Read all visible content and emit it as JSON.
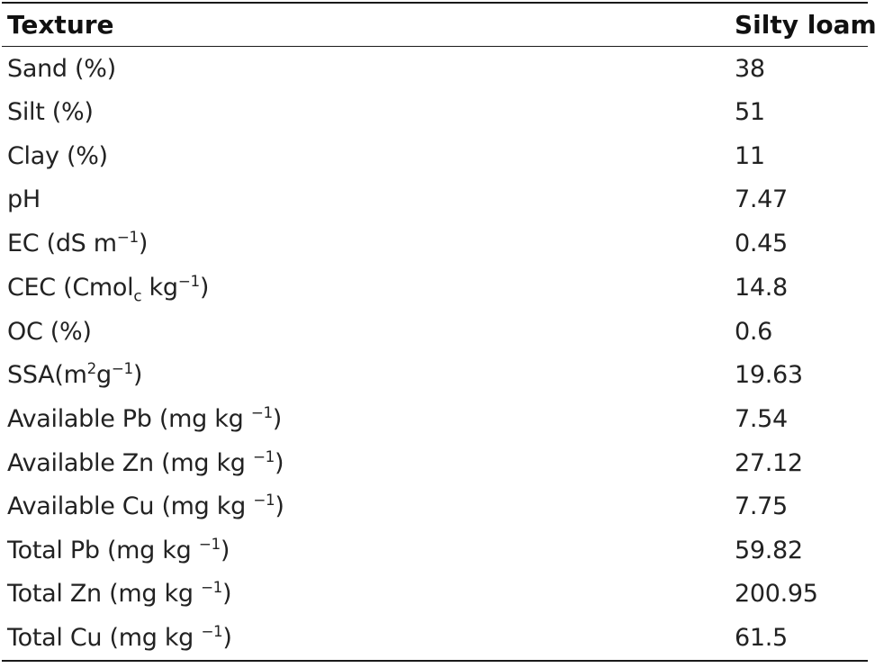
{
  "table": {
    "header": {
      "label": "Texture",
      "value": "Silty loam"
    },
    "rows": [
      {
        "label": "Sand (%)",
        "value": "38"
      },
      {
        "label": "Silt (%)",
        "value": "51"
      },
      {
        "label": "Clay (%)",
        "value": "11"
      },
      {
        "label": "pH",
        "value": "7.47"
      },
      {
        "label_main": "EC (dS m",
        "label_sup": "−1",
        "label_end": ")",
        "value": "0.45"
      },
      {
        "label_main": "CEC (Cmol",
        "label_sub": "c",
        "label_mid": " kg",
        "label_sup": "−1",
        "label_end": ")",
        "value": "14.8"
      },
      {
        "label": "OC (%)",
        "value": "0.6"
      },
      {
        "label_main": "SSA(m",
        "label_sup": "2",
        "label_mid": "g",
        "label_sup2": "−1",
        "label_end": ")",
        "value": "19.63"
      },
      {
        "label_main": "Available Pb (mg kg ",
        "label_sup": "−1",
        "label_end": ")",
        "value": "7.54"
      },
      {
        "label_main": "Available Zn (mg kg ",
        "label_sup": "−1",
        "label_end": ")",
        "value": "27.12"
      },
      {
        "label_main": "Available Cu (mg kg ",
        "label_sup": "−1",
        "label_end": ")",
        "value": "7.75"
      },
      {
        "label_main": "Total Pb (mg kg ",
        "label_sup": "−1",
        "label_end": ")",
        "value": "59.82"
      },
      {
        "label_main": "Total Zn (mg kg ",
        "label_sup": "−1",
        "label_end": ")",
        "value": "200.95"
      },
      {
        "label_main": "Total Cu (mg kg ",
        "label_sup": "−1",
        "label_end": ")",
        "value": "61.5"
      }
    ]
  }
}
